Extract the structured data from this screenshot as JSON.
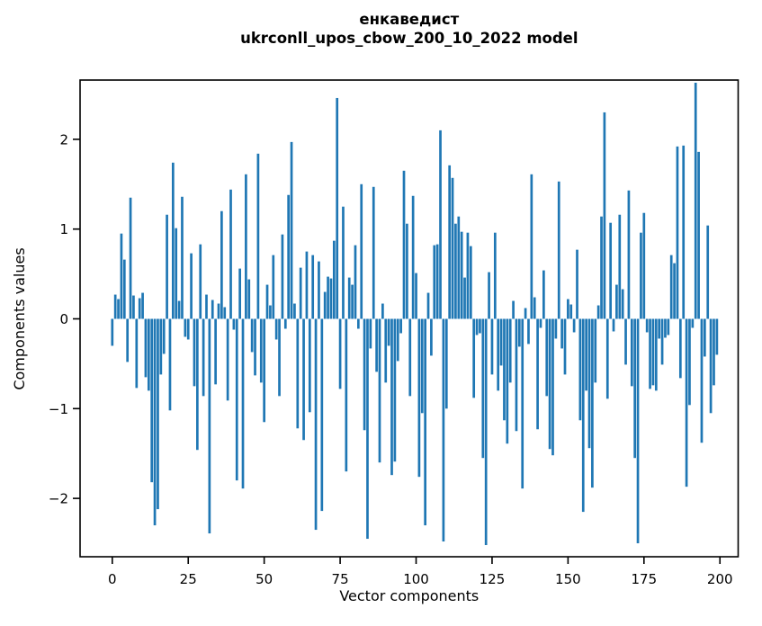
{
  "chart_data": {
    "type": "bar",
    "title": "енкаведист",
    "subtitle": "ukrconll_upos_cbow_200_10_2022 model",
    "xlabel": "Vector components",
    "ylabel": "Components values",
    "bar_color": "#1f77b4",
    "axis_color": "#000000",
    "background_color": "#ffffff",
    "grid": false,
    "legend_position": "none",
    "n_components": 200,
    "x_start": 0,
    "xticks": [
      0,
      25,
      50,
      75,
      100,
      125,
      150,
      175,
      200
    ],
    "yticks": [
      -2,
      -1,
      0,
      1,
      2
    ],
    "xlim": [
      -10.6,
      206.0
    ],
    "ylim": [
      -2.65,
      2.66
    ],
    "values": [
      -0.3,
      0.27,
      0.22,
      0.95,
      0.66,
      -0.48,
      1.35,
      0.26,
      -0.77,
      0.23,
      0.29,
      -0.65,
      -0.8,
      -1.82,
      -2.3,
      -2.12,
      -0.62,
      -0.39,
      1.16,
      -1.02,
      1.74,
      1.01,
      0.2,
      1.36,
      -0.2,
      -0.23,
      0.73,
      -0.75,
      -1.46,
      0.83,
      -0.86,
      0.27,
      -2.39,
      0.21,
      -0.73,
      0.17,
      1.2,
      0.13,
      -0.91,
      1.44,
      -0.12,
      -1.8,
      0.56,
      -1.89,
      1.61,
      0.44,
      -0.37,
      -0.63,
      1.84,
      -0.71,
      -1.15,
      0.38,
      0.15,
      0.71,
      -0.23,
      -0.86,
      0.94,
      -0.11,
      1.38,
      1.97,
      0.17,
      -1.22,
      0.57,
      -1.35,
      0.75,
      -1.04,
      0.71,
      -2.35,
      0.64,
      -2.14,
      0.3,
      0.47,
      0.45,
      0.87,
      2.46,
      -0.78,
      1.25,
      -1.7,
      0.46,
      0.38,
      0.82,
      -0.11,
      1.5,
      -1.24,
      -2.45,
      -0.33,
      1.47,
      -0.59,
      -1.6,
      0.17,
      -0.71,
      -0.3,
      -1.74,
      -1.59,
      -0.47,
      -0.16,
      1.65,
      1.06,
      -0.86,
      1.37,
      0.51,
      -1.76,
      -1.05,
      -2.3,
      0.29,
      -0.41,
      0.82,
      0.83,
      2.1,
      -2.48,
      -1.0,
      1.71,
      1.57,
      1.06,
      1.14,
      0.97,
      0.46,
      0.96,
      0.81,
      -0.88,
      -0.18,
      -0.16,
      -1.55,
      -2.52,
      0.52,
      -0.62,
      0.96,
      -0.8,
      -0.52,
      -1.13,
      -1.39,
      -0.71,
      0.2,
      -1.25,
      -0.31,
      -1.89,
      0.12,
      -0.28,
      1.61,
      0.24,
      -1.23,
      -0.1,
      0.54,
      -0.86,
      -1.45,
      -1.52,
      -0.22,
      1.53,
      -0.33,
      -0.62,
      0.22,
      0.16,
      -0.15,
      0.77,
      -1.13,
      -2.15,
      -0.8,
      -1.44,
      -1.88,
      -0.71,
      0.15,
      1.14,
      2.3,
      -0.89,
      1.07,
      -0.14,
      0.38,
      1.16,
      0.33,
      -0.51,
      1.43,
      -0.75,
      -1.55,
      -2.5,
      0.96,
      1.18,
      -0.15,
      -0.78,
      -0.74,
      -0.8,
      -0.22,
      -0.51,
      -0.21,
      -0.18,
      0.71,
      0.62,
      1.92,
      -0.66,
      1.93,
      -1.87,
      -0.96,
      -0.1,
      2.63,
      1.86,
      -1.38,
      -0.42,
      1.04,
      -1.05,
      -0.74,
      -0.4
    ]
  }
}
